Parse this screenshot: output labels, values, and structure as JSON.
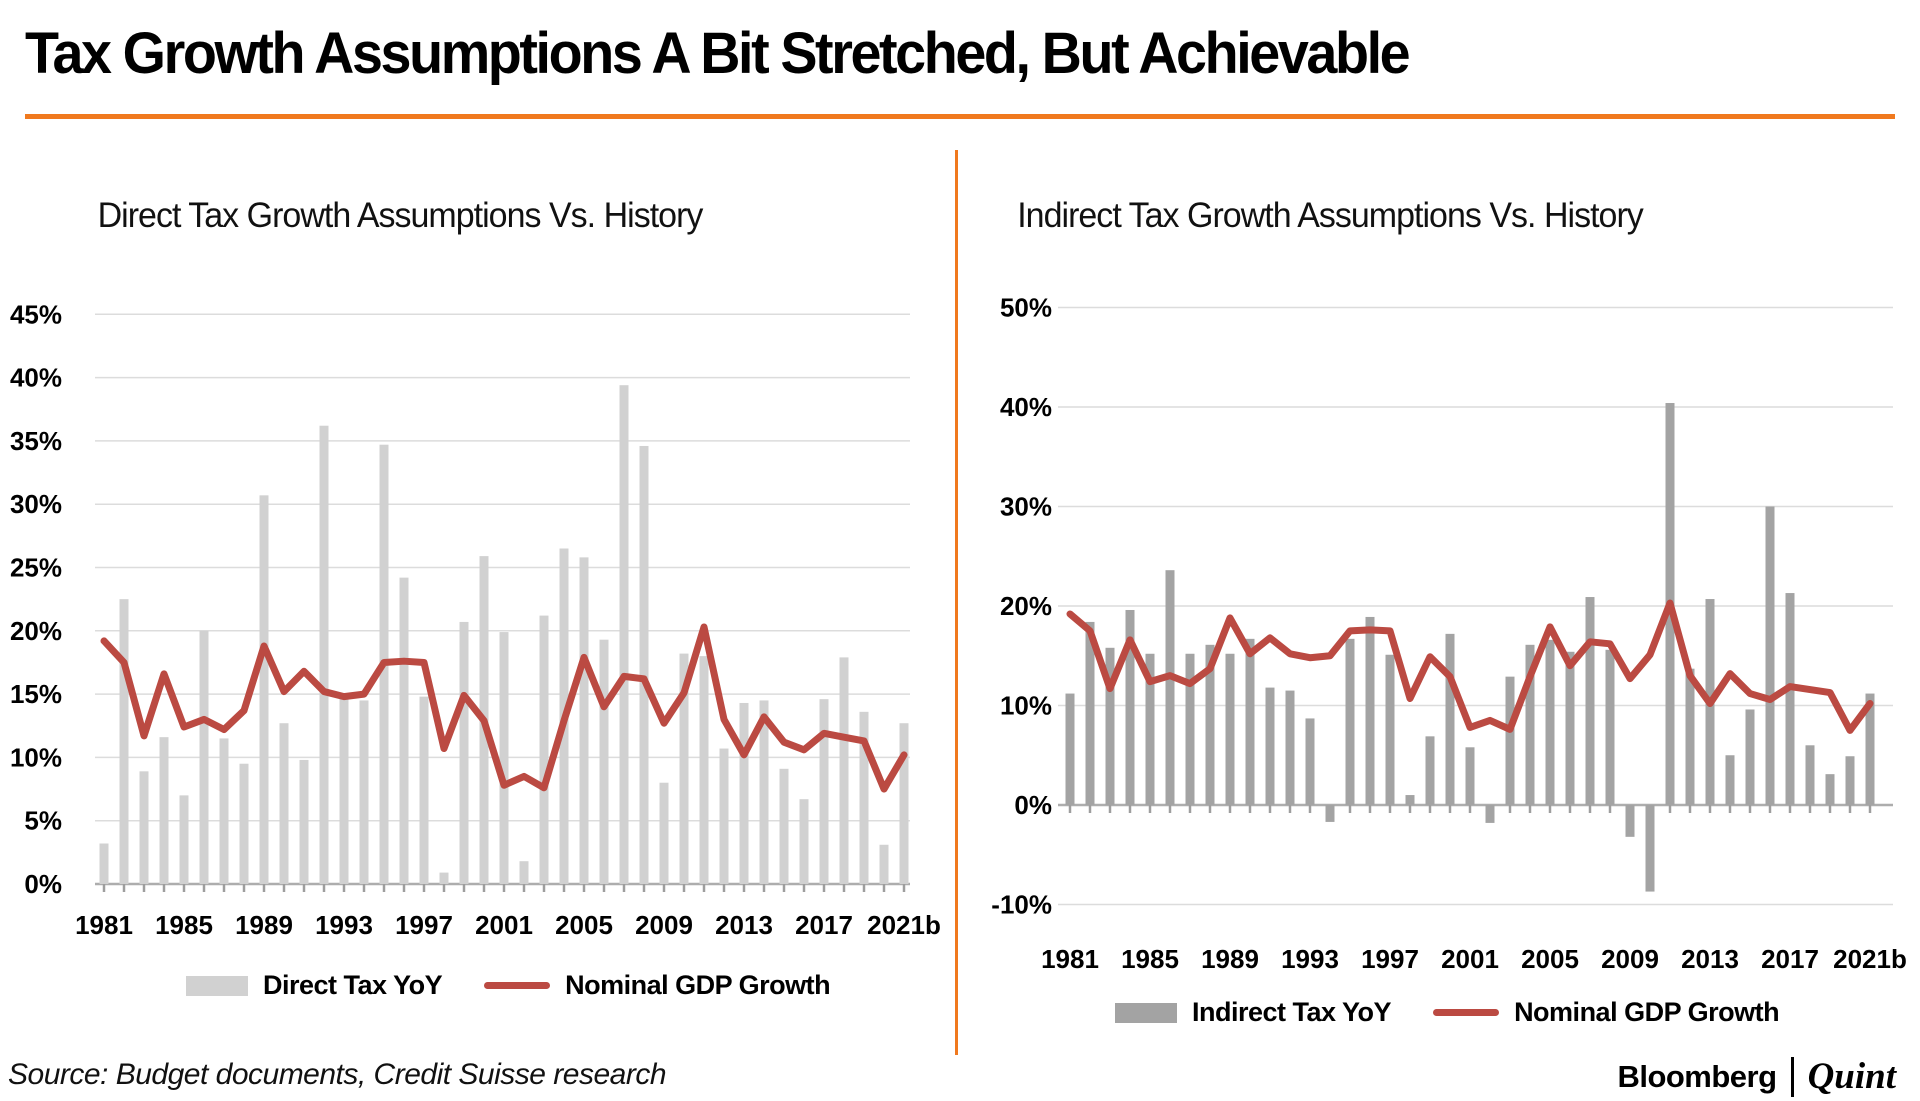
{
  "title": "Tax Growth Assumptions A Bit Stretched, But Achievable",
  "source_note": "Source: Budget documents, Credit Suisse research",
  "brand": {
    "bloomberg": "Bloomberg",
    "separator": "|",
    "quint": "Quint"
  },
  "colors": {
    "accent_orange": "#F0791E",
    "gdp_line_red": "#BB4A42",
    "direct_bar_gray": "#D1D1D1",
    "indirect_bar_gray": "#A3A3A3",
    "gridline_gray": "#DCDCDC",
    "axis_gray": "#ADADAD",
    "tick_gray": "#9E9E9E",
    "text_black": "#000000"
  },
  "chart_data": [
    {
      "id": "direct",
      "type": "bar",
      "title": "Direct Tax Growth Assumptions Vs. History",
      "x": [
        1981,
        1982,
        1983,
        1984,
        1985,
        1986,
        1987,
        1988,
        1989,
        1990,
        1991,
        1992,
        1993,
        1994,
        1995,
        1996,
        1997,
        1998,
        1999,
        2000,
        2001,
        2002,
        2003,
        2004,
        2005,
        2006,
        2007,
        2008,
        2009,
        2010,
        2011,
        2012,
        2013,
        2014,
        2015,
        2016,
        2017,
        2018,
        2019,
        2020,
        2021
      ],
      "x_tick_labels": [
        "1981",
        "1985",
        "1989",
        "1993",
        "1997",
        "2001",
        "2005",
        "2009",
        "2013",
        "2017",
        "2021b"
      ],
      "ylim": [
        0,
        45
      ],
      "y_tick_labels": [
        "0%",
        "5%",
        "10%",
        "15%",
        "20%",
        "25%",
        "30%",
        "35%",
        "40%",
        "45%"
      ],
      "grid": true,
      "legend_position": "bottom",
      "series": [
        {
          "name": "Direct Tax YoY",
          "type": "bar",
          "values": [
            3.2,
            22.5,
            8.9,
            11.6,
            7.0,
            20.0,
            11.5,
            9.5,
            30.7,
            12.7,
            9.8,
            36.2,
            14.8,
            14.5,
            34.7,
            24.2,
            14.8,
            0.9,
            20.7,
            25.9,
            19.9,
            1.8,
            21.2,
            26.5,
            25.8,
            19.3,
            39.4,
            34.6,
            8.0,
            18.2,
            18.0,
            10.7,
            14.3,
            14.5,
            9.1,
            6.7,
            14.6,
            17.9,
            13.6,
            3.1,
            12.7
          ]
        },
        {
          "name": "Nominal GDP Growth",
          "type": "line",
          "values": [
            19.2,
            17.5,
            11.7,
            16.6,
            12.4,
            13.0,
            12.2,
            13.7,
            18.8,
            15.2,
            16.8,
            15.2,
            14.8,
            15.0,
            17.5,
            17.6,
            17.5,
            10.7,
            14.9,
            12.9,
            7.8,
            8.5,
            7.6,
            12.9,
            17.9,
            14.0,
            16.4,
            16.2,
            12.7,
            15.1,
            20.3,
            13.0,
            10.2,
            13.2,
            11.2,
            10.6,
            11.9,
            11.6,
            11.3,
            7.5,
            10.2
          ]
        }
      ]
    },
    {
      "id": "indirect",
      "type": "bar",
      "title": "Indirect Tax Growth Assumptions Vs. History",
      "x": [
        1981,
        1982,
        1983,
        1984,
        1985,
        1986,
        1987,
        1988,
        1989,
        1990,
        1991,
        1992,
        1993,
        1994,
        1995,
        1996,
        1997,
        1998,
        1999,
        2000,
        2001,
        2002,
        2003,
        2004,
        2005,
        2006,
        2007,
        2008,
        2009,
        2010,
        2011,
        2012,
        2013,
        2014,
        2015,
        2016,
        2017,
        2018,
        2019,
        2020,
        2021
      ],
      "x_tick_labels": [
        "1981",
        "1985",
        "1989",
        "1993",
        "1997",
        "2001",
        "2005",
        "2009",
        "2013",
        "2017",
        "2021b"
      ],
      "ylim": [
        -10,
        50
      ],
      "y_tick_labels": [
        "-10%",
        "0%",
        "10%",
        "20%",
        "30%",
        "40%",
        "50%"
      ],
      "grid": true,
      "legend_position": "bottom",
      "series": [
        {
          "name": "Indirect Tax YoY",
          "type": "bar",
          "values": [
            11.2,
            18.4,
            15.8,
            19.6,
            15.2,
            23.6,
            15.2,
            16.1,
            15.2,
            16.7,
            11.8,
            11.5,
            8.7,
            -1.7,
            16.7,
            18.9,
            15.1,
            1.0,
            6.9,
            17.2,
            5.8,
            -1.8,
            12.9,
            16.1,
            16.6,
            15.4,
            20.9,
            15.6,
            -3.2,
            -8.7,
            40.4,
            13.7,
            20.7,
            5.0,
            9.6,
            30.0,
            21.3,
            6.0,
            3.1,
            4.9,
            11.2
          ]
        },
        {
          "name": "Nominal GDP Growth",
          "type": "line",
          "values": [
            19.2,
            17.5,
            11.7,
            16.6,
            12.4,
            13.0,
            12.2,
            13.7,
            18.8,
            15.2,
            16.8,
            15.2,
            14.8,
            15.0,
            17.5,
            17.6,
            17.5,
            10.7,
            14.9,
            12.9,
            7.8,
            8.5,
            7.6,
            12.9,
            17.9,
            14.0,
            16.4,
            16.2,
            12.7,
            15.1,
            20.3,
            13.0,
            10.2,
            13.2,
            11.2,
            10.6,
            11.9,
            11.6,
            11.3,
            7.5,
            10.2
          ]
        }
      ]
    }
  ]
}
